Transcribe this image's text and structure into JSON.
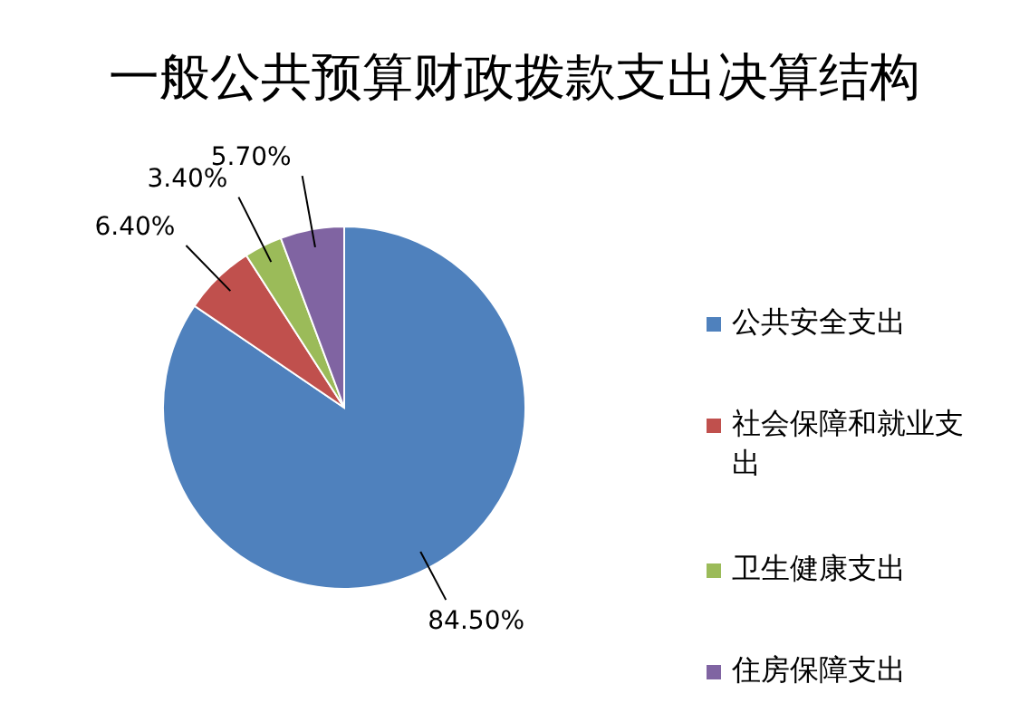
{
  "chart_data": {
    "type": "pie",
    "title": "一般公共预算财政拨款支出决算结构",
    "categories": [
      "公共安全支出",
      "社会保障和就业支出",
      "卫生健康支出",
      "住房保障支出"
    ],
    "values": [
      84.5,
      6.4,
      3.4,
      5.7
    ],
    "value_labels": [
      "84.50%",
      "6.40%",
      "3.40%",
      "5.70%"
    ],
    "colors": [
      "#4f81bd",
      "#c0504d",
      "#9bbb59",
      "#8064a2"
    ],
    "legend": "right"
  }
}
